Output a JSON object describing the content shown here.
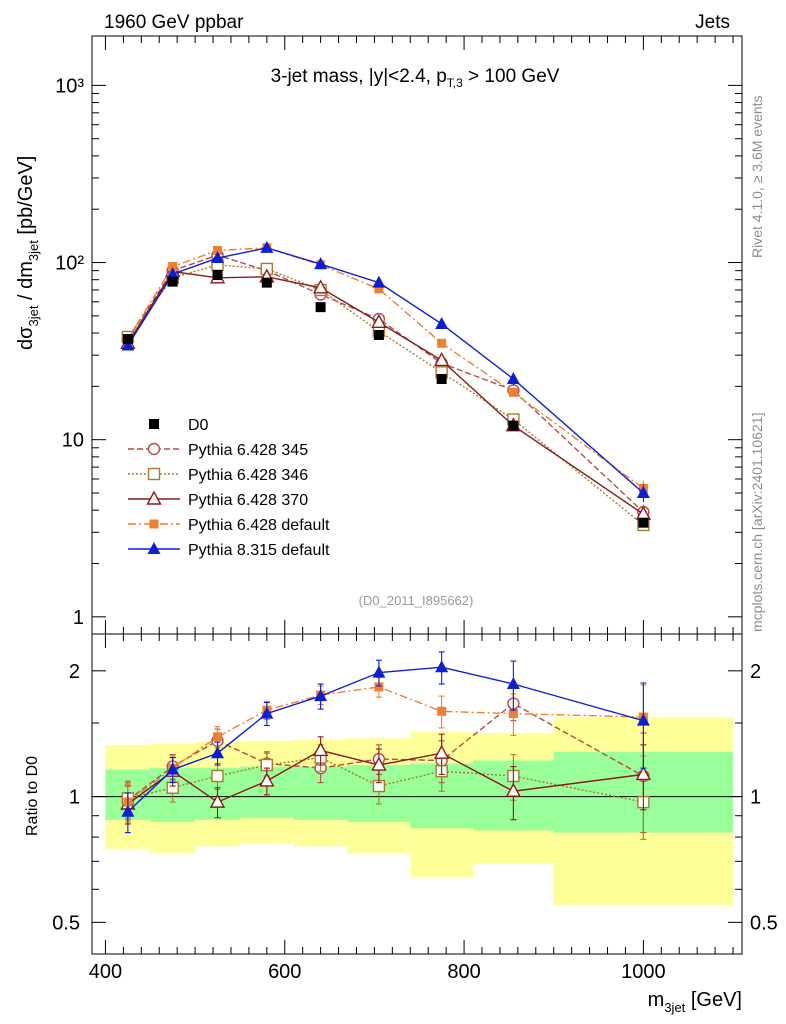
{
  "header": {
    "left": "1960 GeV ppbar",
    "right": "Jets",
    "title": "3-jet mass, |y|<2.4, p",
    "title_sub": "T,3",
    "title_tail": " > 100 GeV",
    "ref_id": "(D0_2011_I895662)",
    "side_top": "Rivet 4.1.0, ≥ 3.6M events",
    "side_bottom": "mcplots.cern.ch [arXiv:2401.10621]"
  },
  "axes": {
    "ylabel_main": "dσ",
    "ylabel_main_sub1": "3jet",
    "ylabel_main_mid": " / dm",
    "ylabel_main_sub2": "3jet",
    "ylabel_main_tail": " [pb/GeV]",
    "ylabel_ratio": "Ratio to D0",
    "xlabel": "m",
    "xlabel_sub": "3jet",
    "xlabel_tail": " [GeV]"
  },
  "chart_data": {
    "type": "line",
    "x_range": [
      385,
      1110
    ],
    "main": {
      "yscale": "log",
      "ylim": [
        0.8,
        1900
      ],
      "y_ticks": [
        {
          "value": 1,
          "label": "1"
        },
        {
          "value": 10,
          "label": "10"
        },
        {
          "value": 100,
          "label": "10²"
        },
        {
          "value": 1000,
          "label": "10³"
        }
      ]
    },
    "ratio": {
      "yscale": "log",
      "ylim": [
        0.42,
        2.45
      ],
      "y_ticks": [
        {
          "value": 0.5,
          "label": "0.5"
        },
        {
          "value": 1,
          "label": "1"
        },
        {
          "value": 2,
          "label": "2"
        }
      ]
    },
    "x_ticks": [
      {
        "value": 400,
        "label": "400"
      },
      {
        "value": 600,
        "label": "600"
      },
      {
        "value": 800,
        "label": "800"
      },
      {
        "value": 1000,
        "label": "1000"
      }
    ],
    "x": [
      425,
      475,
      525,
      580,
      640,
      705,
      775,
      855,
      1000
    ],
    "bin_edges": [
      400,
      450,
      500,
      550,
      610,
      670,
      740,
      810,
      900,
      1100
    ],
    "data": {
      "name": "D0",
      "values": [
        37,
        78,
        85,
        77,
        56,
        39,
        22,
        12,
        3.4
      ]
    },
    "bands": {
      "green": [
        [
          0.88,
          1.16
        ],
        [
          0.87,
          1.17
        ],
        [
          0.88,
          1.17
        ],
        [
          0.89,
          1.18
        ],
        [
          0.88,
          1.18
        ],
        [
          0.87,
          1.19
        ],
        [
          0.84,
          1.2
        ],
        [
          0.83,
          1.22
        ],
        [
          0.82,
          1.28
        ]
      ],
      "yellow": [
        [
          0.75,
          1.33
        ],
        [
          0.73,
          1.34
        ],
        [
          0.76,
          1.35
        ],
        [
          0.77,
          1.36
        ],
        [
          0.76,
          1.37
        ],
        [
          0.73,
          1.38
        ],
        [
          0.64,
          1.43
        ],
        [
          0.69,
          1.42
        ],
        [
          0.55,
          1.55
        ]
      ]
    },
    "series": [
      {
        "name": "Pythia 6.428 345",
        "color": "#b64a4a",
        "marker": "open-circle",
        "dash": "6,3",
        "values": [
          37,
          90,
          110,
          90,
          66,
          48,
          27,
          19,
          3.9
        ],
        "ratio": [
          0.98,
          1.18,
          1.36,
          1.2,
          1.17,
          1.23,
          1.22,
          1.67,
          1.12
        ],
        "ratio_err": [
          0.1,
          0.08,
          0.09,
          0.08,
          0.09,
          0.1,
          0.14,
          0.15,
          0.3
        ]
      },
      {
        "name": "Pythia 6.428 346",
        "color": "#a87a2a",
        "marker": "open-square",
        "dash": "2,2",
        "values": [
          38,
          82,
          97,
          92,
          70,
          41,
          24,
          13,
          3.3
        ],
        "ratio": [
          0.99,
          1.05,
          1.12,
          1.19,
          1.24,
          1.06,
          1.15,
          1.12,
          0.97
        ],
        "ratio_err": [
          0.1,
          0.08,
          0.08,
          0.08,
          0.09,
          0.1,
          0.12,
          0.14,
          0.18
        ]
      },
      {
        "name": "Pythia 6.428 370",
        "color": "#8b1a1a",
        "marker": "open-triangle",
        "dash": "",
        "values": [
          35,
          89,
          82,
          83,
          72,
          46,
          28,
          12,
          3.8
        ],
        "ratio": [
          0.96,
          1.15,
          0.97,
          1.09,
          1.29,
          1.19,
          1.27,
          1.03,
          1.13
        ],
        "ratio_err": [
          0.1,
          0.09,
          0.08,
          0.08,
          0.1,
          0.11,
          0.14,
          0.15,
          0.2
        ]
      },
      {
        "name": "Pythia 6.428 default",
        "color": "#f07f2e",
        "marker": "filled-square",
        "dash": "8,3,2,3",
        "values": [
          37,
          95,
          117,
          121,
          97,
          71,
          35,
          18.5,
          5.3
        ],
        "ratio": [
          0.97,
          1.17,
          1.39,
          1.61,
          1.75,
          1.83,
          1.6,
          1.58,
          1.55
        ],
        "ratio_err": [
          0.1,
          0.08,
          0.08,
          0.08,
          0.09,
          0.1,
          0.14,
          0.18,
          0.3
        ]
      },
      {
        "name": "Pythia 8.315 default",
        "color": "#0b1fd6",
        "marker": "filled-triangle",
        "dash": "",
        "values": [
          34,
          86,
          106,
          121,
          98,
          77,
          45,
          22,
          5
        ],
        "ratio": [
          0.92,
          1.16,
          1.27,
          1.58,
          1.74,
          1.98,
          2.04,
          1.86,
          1.52
        ],
        "ratio_err": [
          0.1,
          0.08,
          0.08,
          0.1,
          0.12,
          0.14,
          0.18,
          0.25,
          0.35
        ]
      }
    ]
  }
}
